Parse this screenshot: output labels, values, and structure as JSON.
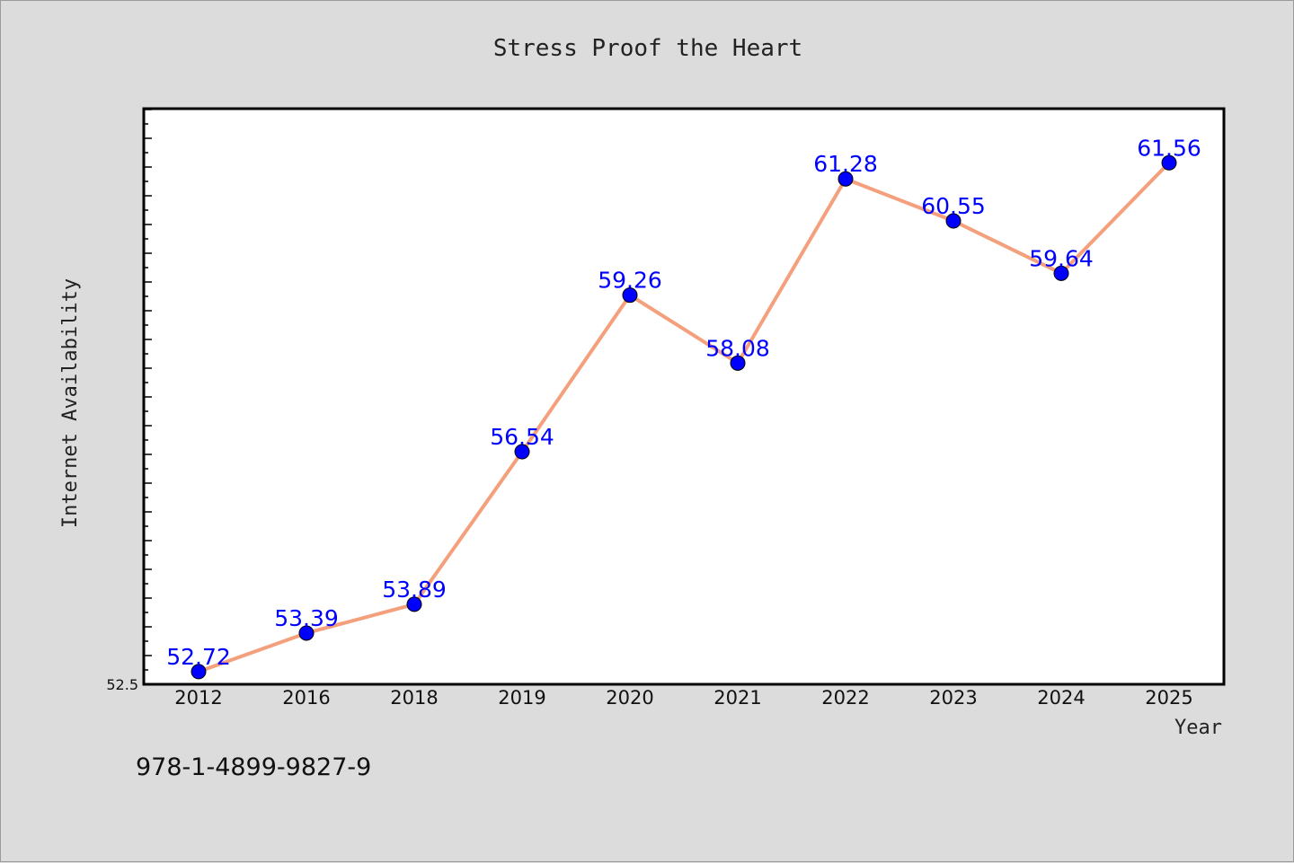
{
  "chart_data": {
    "type": "line",
    "title": "Stress Proof the Heart",
    "xlabel": "Year",
    "ylabel": "Internet Availability",
    "categories": [
      "2012",
      "2016",
      "2018",
      "2019",
      "2020",
      "2021",
      "2022",
      "2023",
      "2024",
      "2025"
    ],
    "series": [
      {
        "values": [
          52.72,
          53.39,
          53.89,
          56.54,
          59.26,
          58.08,
          61.28,
          60.55,
          59.64,
          61.56
        ]
      }
    ],
    "ylim": [
      52.5,
      62.5
    ],
    "yticks_labeled": [
      "52.5"
    ],
    "grid": false,
    "legend": "none",
    "line_color": "#f4a07c",
    "marker_color": "#0000ff",
    "label_color": "#0000ff"
  },
  "footer_text": "978-1-4899-9827-9"
}
